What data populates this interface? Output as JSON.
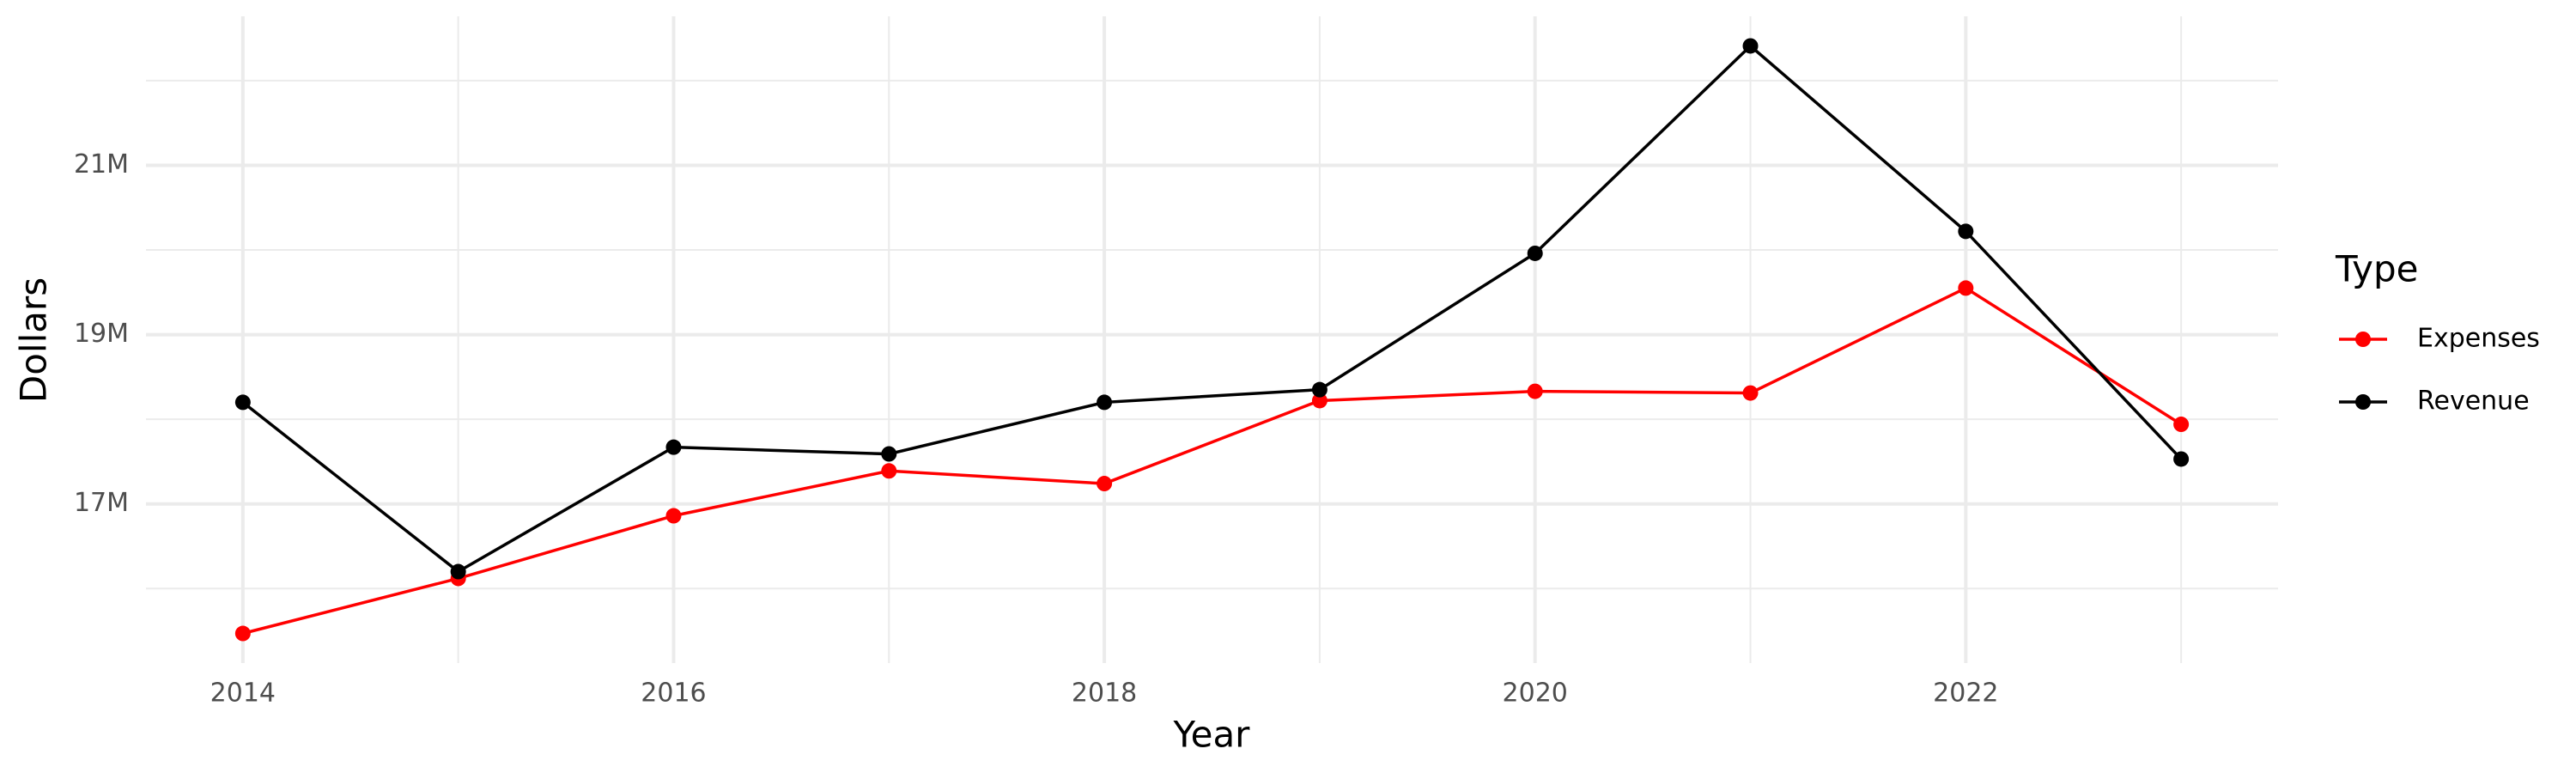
{
  "chart_data": {
    "type": "line",
    "x_label": "Year",
    "y_label": "Dollars",
    "legend_title": "Type",
    "x": [
      2014,
      2015,
      2016,
      2017,
      2018,
      2019,
      2020,
      2021,
      2022,
      2023
    ],
    "series": [
      {
        "name": "Expenses",
        "color": "#ff0000",
        "values": [
          15470000,
          16120000,
          16860000,
          17390000,
          17240000,
          18220000,
          18330000,
          18310000,
          19550000,
          17940000
        ]
      },
      {
        "name": "Revenue",
        "color": "#000000",
        "values": [
          18200000,
          16200000,
          17670000,
          17590000,
          18200000,
          18350000,
          19960000,
          22410000,
          20220000,
          17530000
        ]
      }
    ],
    "xlim": [
      2013.55,
      2023.45
    ],
    "ylim": [
      15120000,
      22760000
    ],
    "xticks": [
      2014,
      2016,
      2018,
      2020,
      2022
    ],
    "x_minor_ticks": [
      2015,
      2017,
      2019,
      2021,
      2023
    ],
    "yticks": [
      {
        "value": 17000000,
        "label": "17M"
      },
      {
        "value": 19000000,
        "label": "19M"
      },
      {
        "value": 21000000,
        "label": "21M"
      }
    ],
    "y_minor_ticks": [
      16000000,
      18000000,
      20000000,
      22000000
    ],
    "grid": true,
    "legend": "right"
  }
}
